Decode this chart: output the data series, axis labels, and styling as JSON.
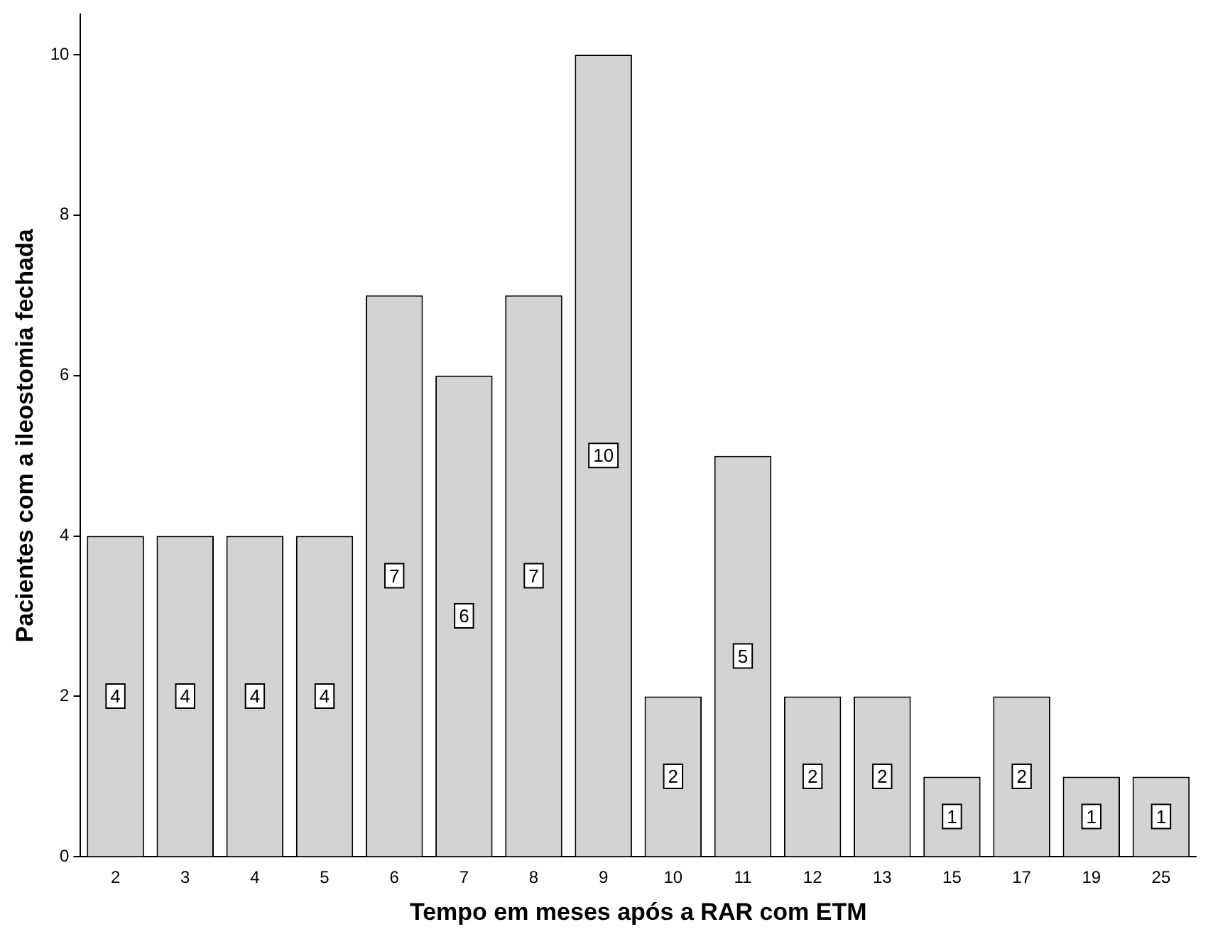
{
  "chart_data": {
    "type": "bar",
    "xlabel": "Tempo em meses após a RAR com ETM",
    "ylabel": "Pacientes com a ileostomia fechada",
    "categories": [
      "2",
      "3",
      "4",
      "5",
      "6",
      "7",
      "8",
      "9",
      "10",
      "11",
      "12",
      "13",
      "15",
      "17",
      "19",
      "25"
    ],
    "values": [
      4,
      4,
      4,
      4,
      7,
      6,
      7,
      10,
      2,
      5,
      2,
      2,
      1,
      2,
      1,
      1
    ],
    "color": "#d3d3d3",
    "ylim": [
      0,
      10.5
    ],
    "yticks": [
      0,
      2,
      4,
      6,
      8,
      10
    ],
    "grid": false,
    "legend": false,
    "data_labels": true
  }
}
